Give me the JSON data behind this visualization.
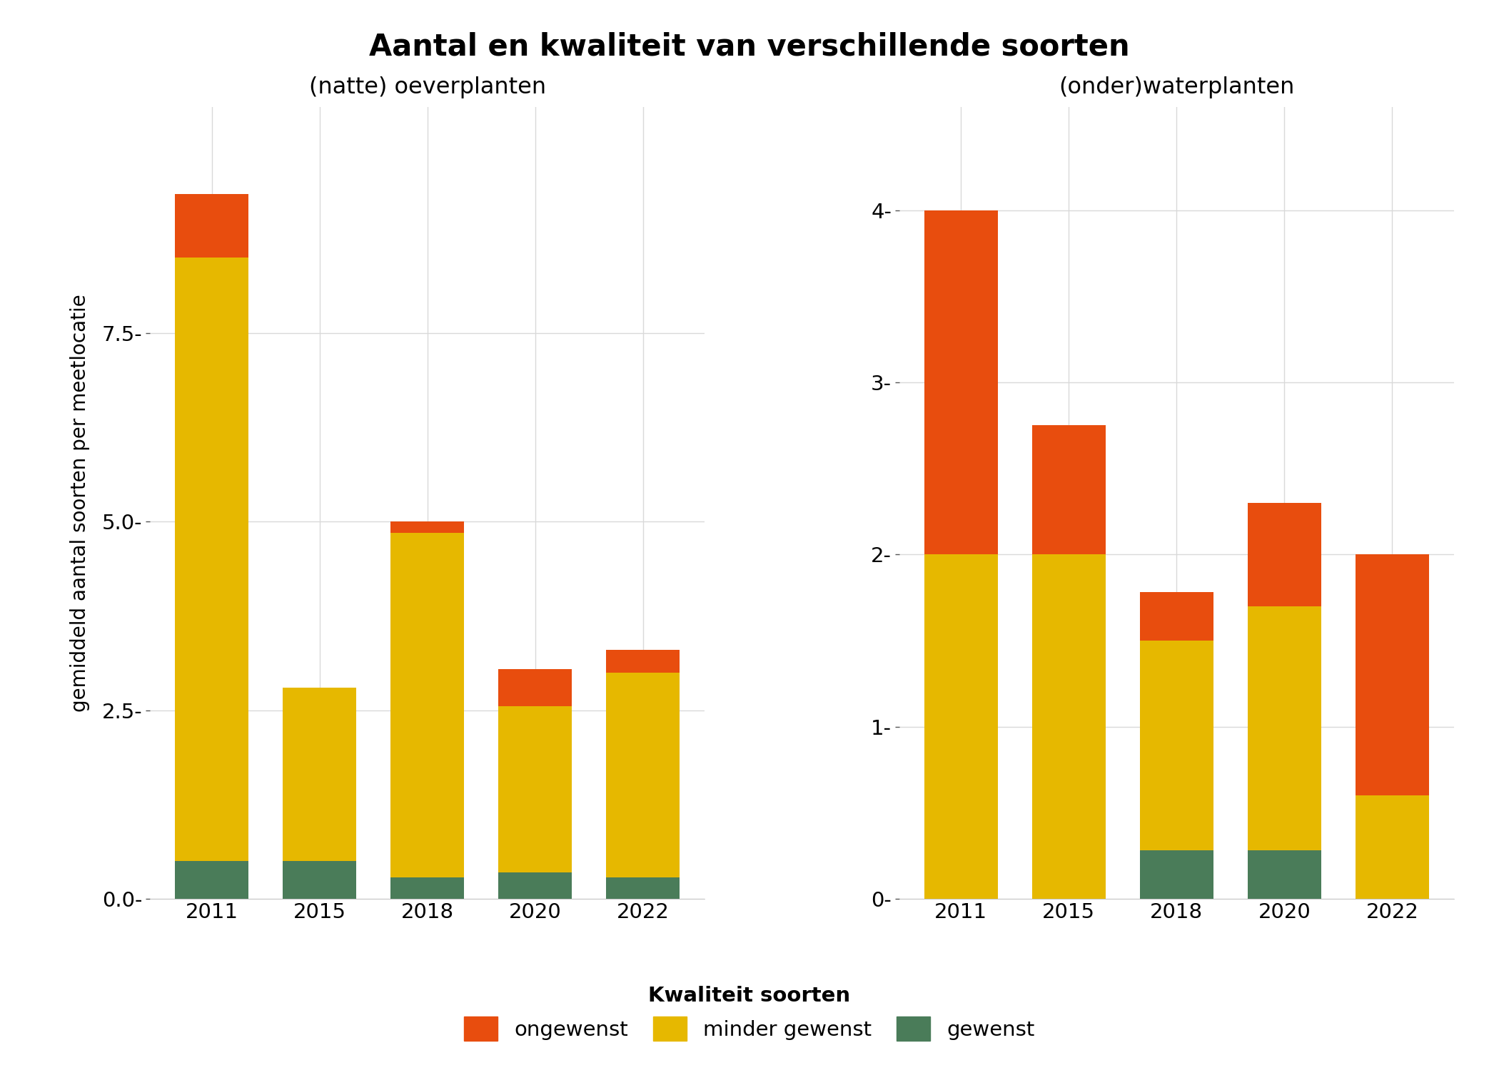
{
  "title": "Aantal en kwaliteit van verschillende soorten",
  "left_subtitle": "(natte) oeverplanten",
  "right_subtitle": "(onder)waterplanten",
  "ylabel": "gemiddeld aantal soorten per meetlocatie",
  "years": [
    "2011",
    "2015",
    "2018",
    "2020",
    "2022"
  ],
  "left": {
    "gewenst": [
      0.5,
      0.5,
      0.28,
      0.35,
      0.28
    ],
    "minder_gewenst": [
      8.0,
      2.3,
      4.57,
      2.2,
      2.72
    ],
    "ongewenst": [
      0.85,
      0.0,
      0.15,
      0.5,
      0.3
    ]
  },
  "right": {
    "gewenst": [
      0.0,
      0.0,
      0.28,
      0.28,
      0.0
    ],
    "minder_gewenst": [
      2.0,
      2.0,
      1.22,
      1.42,
      0.6
    ],
    "ongewenst": [
      2.0,
      0.75,
      0.28,
      0.6,
      1.4
    ]
  },
  "colors": {
    "gewenst": "#4a7c59",
    "minder_gewenst": "#e6b800",
    "ongewenst": "#e84d0e"
  },
  "legend_label_title": "Kwaliteit soorten",
  "legend_labels": [
    "ongewenst",
    "minder gewenst",
    "gewenst"
  ],
  "background_color": "#ffffff",
  "grid_color": "#d9d9d9",
  "left_ylim": [
    0,
    10.5
  ],
  "left_yticks": [
    0.0,
    2.5,
    5.0,
    7.5
  ],
  "left_ytick_labels": [
    "0.0-",
    "2.5-",
    "5.0-",
    "7.5-"
  ],
  "right_ylim": [
    0,
    4.6
  ],
  "right_yticks": [
    0,
    1,
    2,
    3,
    4
  ],
  "right_ytick_labels": [
    "0-",
    "1-",
    "2-",
    "3-",
    "4-"
  ]
}
